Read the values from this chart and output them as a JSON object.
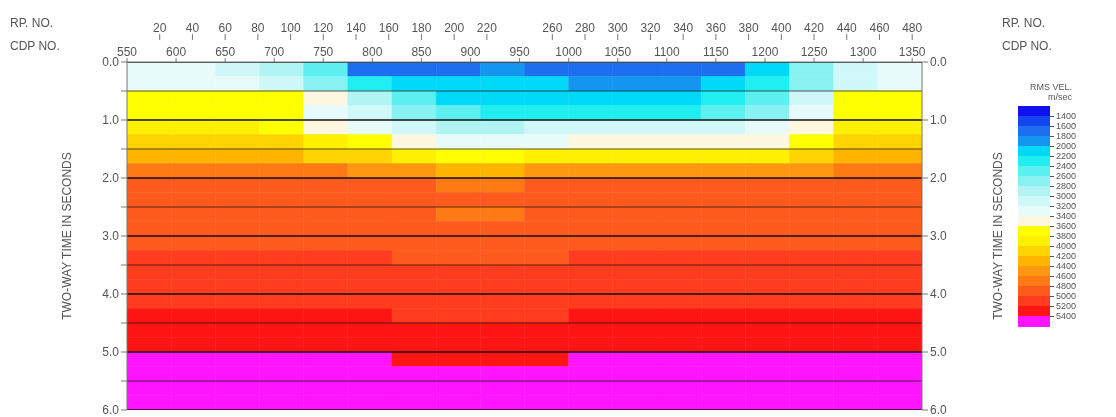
{
  "chart_data": {
    "type": "heatmap",
    "xlabel": "CDP NO.",
    "x2label": "RP. NO.",
    "ylabel": "TWO-WAY TIME IN SECONDS",
    "y2label": "TWO-WAY TIME IN SECONDS",
    "clabel": "RMS VEL. m/sec",
    "annotations": [
      "RP. NO.",
      "CDP NO."
    ],
    "xlim": [
      550,
      1360
    ],
    "xticks": [
      550,
      600,
      650,
      700,
      750,
      800,
      850,
      900,
      950,
      1000,
      1050,
      1100,
      1150,
      1200,
      1250,
      1300,
      1350
    ],
    "x2lim": [
      0,
      486
    ],
    "x2ticks": [
      20,
      40,
      60,
      80,
      100,
      120,
      140,
      160,
      180,
      200,
      220,
      260,
      280,
      300,
      320,
      340,
      360,
      380,
      400,
      420,
      440,
      460,
      480
    ],
    "ylim": [
      6.0,
      0.0
    ],
    "yticks": [
      {
        "value": 0,
        "label": "0.0"
      },
      {
        "value": 0.5,
        "label": null
      },
      {
        "value": 1,
        "label": "1.0"
      },
      {
        "value": 1.5,
        "label": null
      },
      {
        "value": 2,
        "label": "2.0"
      },
      {
        "value": 2.5,
        "label": null
      },
      {
        "value": 3,
        "label": "3.0"
      },
      {
        "value": 3.5,
        "label": null
      },
      {
        "value": 4,
        "label": "4.0"
      },
      {
        "value": 4.5,
        "label": null
      },
      {
        "value": 5,
        "label": "5.0"
      },
      {
        "value": 5.5,
        "label": null
      },
      {
        "value": 6,
        "label": "6.0"
      }
    ],
    "y2lim": [
      6.0,
      0.0
    ],
    "y2ticks": [
      {
        "value": 0,
        "label": "0.0"
      },
      {
        "value": 1,
        "label": "1.0"
      },
      {
        "value": 2,
        "label": "2.0"
      },
      {
        "value": 3,
        "label": "3.0"
      },
      {
        "value": 4,
        "label": "4.0"
      },
      {
        "value": 5,
        "label": "5.0"
      },
      {
        "value": 6,
        "label": "6.0"
      }
    ],
    "grid": "y",
    "clim": [
      1200,
      5600
    ],
    "cticks": [
      1400,
      1600,
      1800,
      2000,
      2200,
      2400,
      2600,
      2800,
      3000,
      3200,
      3400,
      3600,
      3800,
      4000,
      4200,
      4400,
      4600,
      4800,
      5000,
      5200,
      5400
    ],
    "colors": [
      "#1010f0",
      "#1446f0",
      "#1e6ef0",
      "#1496f0",
      "#00d8f8",
      "#20eef0",
      "#5cf0f0",
      "#88f2f2",
      "#b0f4f4",
      "#d0f8f8",
      "#e8fbfb",
      "#fdf7e0",
      "#ffff00",
      "#fff000",
      "#ffd400",
      "#ffb400",
      "#ff9810",
      "#ff7a14",
      "#ff5a1e",
      "#ff3c1e",
      "#ff1414",
      "#ff14ff"
    ],
    "cells": [
      [
        3300,
        3300,
        3100,
        2900,
        2500,
        1700,
        1700,
        1700,
        1900,
        1700,
        1700,
        1700,
        1700,
        1700,
        2100,
        2700,
        3100,
        3300
      ],
      [
        3300,
        3300,
        3300,
        3100,
        2700,
        2300,
        2100,
        2100,
        2100,
        2100,
        1900,
        1900,
        1900,
        2100,
        2300,
        2700,
        3100,
        3300
      ],
      [
        3700,
        3700,
        3700,
        3700,
        3500,
        2900,
        2500,
        2100,
        2100,
        2100,
        2100,
        2100,
        2100,
        2300,
        2500,
        3100,
        3700,
        3700
      ],
      [
        3700,
        3700,
        3700,
        3700,
        3300,
        3100,
        2700,
        2500,
        2300,
        2300,
        2300,
        2300,
        2300,
        2500,
        2700,
        3300,
        3700,
        3700
      ],
      [
        3900,
        3900,
        3900,
        3700,
        3500,
        3300,
        3100,
        2900,
        2900,
        3100,
        3100,
        3100,
        3100,
        3100,
        3300,
        3500,
        3900,
        3900
      ],
      [
        4100,
        4100,
        4100,
        4100,
        3900,
        3700,
        3500,
        3300,
        3300,
        3300,
        3500,
        3500,
        3500,
        3500,
        3500,
        3700,
        4100,
        4100
      ],
      [
        4300,
        4300,
        4300,
        4300,
        4100,
        4100,
        3900,
        3700,
        3700,
        3900,
        3900,
        3900,
        3900,
        3900,
        3900,
        4100,
        4300,
        4300
      ],
      [
        4700,
        4700,
        4700,
        4700,
        4700,
        4500,
        4500,
        4300,
        4300,
        4500,
        4500,
        4500,
        4500,
        4500,
        4500,
        4500,
        4700,
        4700
      ],
      [
        4900,
        4900,
        4900,
        4900,
        4900,
        4900,
        4900,
        4700,
        4700,
        4900,
        4900,
        4900,
        4900,
        4900,
        4900,
        4900,
        4900,
        4900
      ],
      [
        4900,
        4900,
        4900,
        4900,
        4900,
        4900,
        4900,
        4900,
        4900,
        4900,
        4900,
        4900,
        4900,
        4900,
        4900,
        4900,
        4900,
        4900
      ],
      [
        4900,
        4900,
        4900,
        4900,
        4900,
        4900,
        4900,
        4700,
        4700,
        4900,
        4900,
        4900,
        4900,
        4900,
        4900,
        4900,
        4900,
        4900
      ],
      [
        4900,
        4900,
        4900,
        4900,
        4900,
        4900,
        4900,
        4900,
        4900,
        4900,
        4900,
        4900,
        4900,
        4900,
        4900,
        4900,
        4900,
        4900
      ],
      [
        4900,
        4900,
        4900,
        4900,
        4900,
        4900,
        4900,
        4900,
        4900,
        4900,
        4900,
        4900,
        4900,
        4900,
        4900,
        4900,
        4900,
        4900
      ],
      [
        5100,
        5100,
        5100,
        5100,
        5100,
        5100,
        4900,
        4900,
        4900,
        4900,
        5100,
        5100,
        5100,
        5100,
        5100,
        5100,
        5100,
        5100
      ],
      [
        5100,
        5100,
        5100,
        5100,
        5100,
        5100,
        5100,
        5100,
        5100,
        5100,
        5100,
        5100,
        5100,
        5100,
        5100,
        5100,
        5100,
        5100
      ],
      [
        5100,
        5100,
        5100,
        5100,
        5100,
        5100,
        5100,
        5100,
        5100,
        5100,
        5100,
        5100,
        5100,
        5100,
        5100,
        5100,
        5100,
        5100
      ],
      [
        5100,
        5100,
        5100,
        5100,
        5100,
        5100,
        5100,
        5100,
        5100,
        5100,
        5100,
        5100,
        5100,
        5100,
        5100,
        5100,
        5100,
        5100
      ],
      [
        5300,
        5300,
        5300,
        5300,
        5300,
        5300,
        5100,
        5100,
        5100,
        5100,
        5300,
        5300,
        5300,
        5300,
        5300,
        5300,
        5300,
        5300
      ],
      [
        5300,
        5300,
        5300,
        5300,
        5300,
        5300,
        5300,
        5300,
        5300,
        5300,
        5300,
        5300,
        5300,
        5300,
        5300,
        5300,
        5300,
        5300
      ],
      [
        5300,
        5300,
        5300,
        5300,
        5300,
        5300,
        5300,
        5300,
        5300,
        5300,
        5300,
        5300,
        5300,
        5300,
        5300,
        5300,
        5300,
        5300
      ],
      [
        5500,
        5500,
        5500,
        5500,
        5500,
        5500,
        5300,
        5300,
        5300,
        5300,
        5500,
        5500,
        5500,
        5500,
        5500,
        5500,
        5500,
        5500
      ],
      [
        5500,
        5500,
        5500,
        5500,
        5500,
        5500,
        5500,
        5500,
        5500,
        5500,
        5500,
        5500,
        5500,
        5500,
        5500,
        5500,
        5500,
        5500
      ],
      [
        5500,
        5500,
        5500,
        5500,
        5500,
        5500,
        5500,
        5500,
        5500,
        5500,
        5500,
        5500,
        5500,
        5500,
        5500,
        5500,
        5500,
        5500
      ],
      [
        5500,
        5500,
        5500,
        5500,
        5500,
        5500,
        5500,
        5500,
        5500,
        5500,
        5500,
        5500,
        5500,
        5500,
        5500,
        5500,
        5500,
        5500
      ]
    ]
  }
}
